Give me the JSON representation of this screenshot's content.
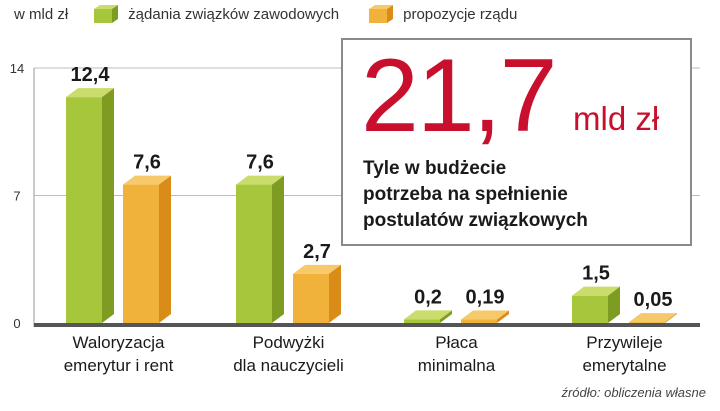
{
  "legend": {
    "unit": "w mld zł",
    "items": [
      {
        "label": "żądania związków zawodowych",
        "top": "#c9dc6c",
        "front": "#a6c63c",
        "side": "#7f9c22"
      },
      {
        "label": "propozycje rządu",
        "top": "#f6c96a",
        "front": "#f0b23a",
        "side": "#d98c17"
      }
    ]
  },
  "callout": {
    "value": "21,7",
    "unit": "mld zł",
    "lines": [
      "Tyle w budżecie",
      "potrzeba na spełnienie",
      "postulatów związkowych"
    ],
    "accent": "#c8102e"
  },
  "source": "źródło: obliczenia własne",
  "chart_data": {
    "type": "bar",
    "title": "",
    "xlabel": "",
    "ylabel": "w mld zł",
    "ylim": [
      0,
      14
    ],
    "yticks": [
      0,
      7,
      14
    ],
    "categories": [
      [
        "Waloryzacja",
        "emerytur i rent"
      ],
      [
        "Podwyżki",
        "dla nauczycieli"
      ],
      [
        "Płaca",
        "minimalna"
      ],
      [
        "Przywileje",
        "emerytalne"
      ]
    ],
    "series": [
      {
        "name": "żądania związków zawodowych",
        "values": [
          12.4,
          7.6,
          0.2,
          1.5
        ],
        "labels": [
          "12,4",
          "7,6",
          "0,2",
          "1,5"
        ]
      },
      {
        "name": "propozycje rządu",
        "values": [
          7.6,
          2.7,
          0.19,
          0.05
        ],
        "labels": [
          "7,6",
          "2,7",
          "0,19",
          "0,05"
        ]
      }
    ]
  }
}
